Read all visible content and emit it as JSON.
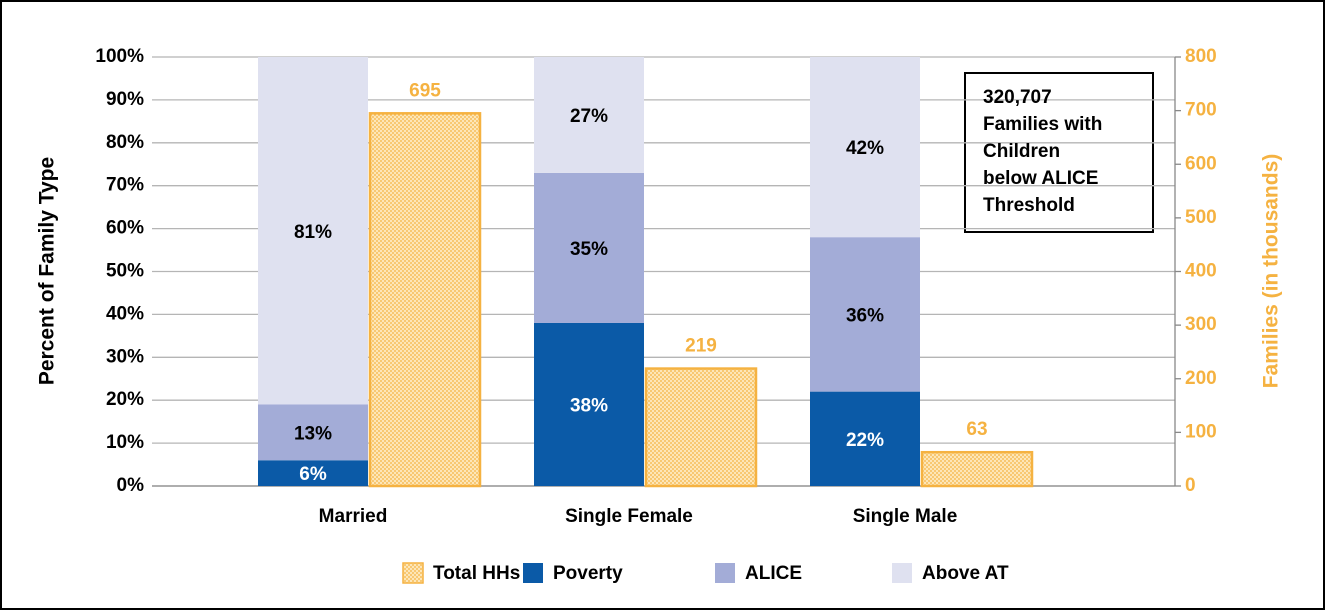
{
  "chart_data": {
    "type": "bar",
    "categories": [
      "Married",
      "Single Female",
      "Single Male"
    ],
    "ylabel": "Percent of Family Type",
    "y2label": "Families (in thousands)",
    "ylim": [
      0,
      100
    ],
    "yticks": [
      {
        "value": 0,
        "label": "0%"
      },
      {
        "value": 10,
        "label": "10%"
      },
      {
        "value": 20,
        "label": "20%"
      },
      {
        "value": 30,
        "label": "30%"
      },
      {
        "value": 40,
        "label": "40%"
      },
      {
        "value": 50,
        "label": "50%"
      },
      {
        "value": 60,
        "label": "60%"
      },
      {
        "value": 70,
        "label": "70%"
      },
      {
        "value": 80,
        "label": "80%"
      },
      {
        "value": 90,
        "label": "90%"
      },
      {
        "value": 100,
        "label": "100%"
      }
    ],
    "y2lim": [
      0,
      800
    ],
    "y2ticks": [
      0,
      100,
      200,
      300,
      400,
      500,
      600,
      700,
      800
    ],
    "grid": true,
    "stacked": true,
    "legend": "bottom",
    "annotation": [
      "320,707",
      "Families with",
      "Children",
      "below ALICE",
      "Threshold"
    ],
    "series": [
      {
        "name": "Total HHs",
        "color": "#f5b241",
        "axis": "y2",
        "values": [
          695,
          219,
          63
        ]
      },
      {
        "name": "Poverty",
        "color": "#0b5aa7",
        "values": [
          6,
          38,
          22
        ],
        "value_labels": [
          "6%",
          "38%",
          "22%"
        ]
      },
      {
        "name": "ALICE",
        "color": "#a3acd7",
        "values": [
          13,
          35,
          36
        ],
        "value_labels": [
          "13%",
          "35%",
          "36%"
        ]
      },
      {
        "name": "Above AT",
        "color": "#dfe1f0",
        "values": [
          81,
          27,
          42
        ],
        "value_labels": [
          "81%",
          "27%",
          "42%"
        ]
      }
    ]
  }
}
